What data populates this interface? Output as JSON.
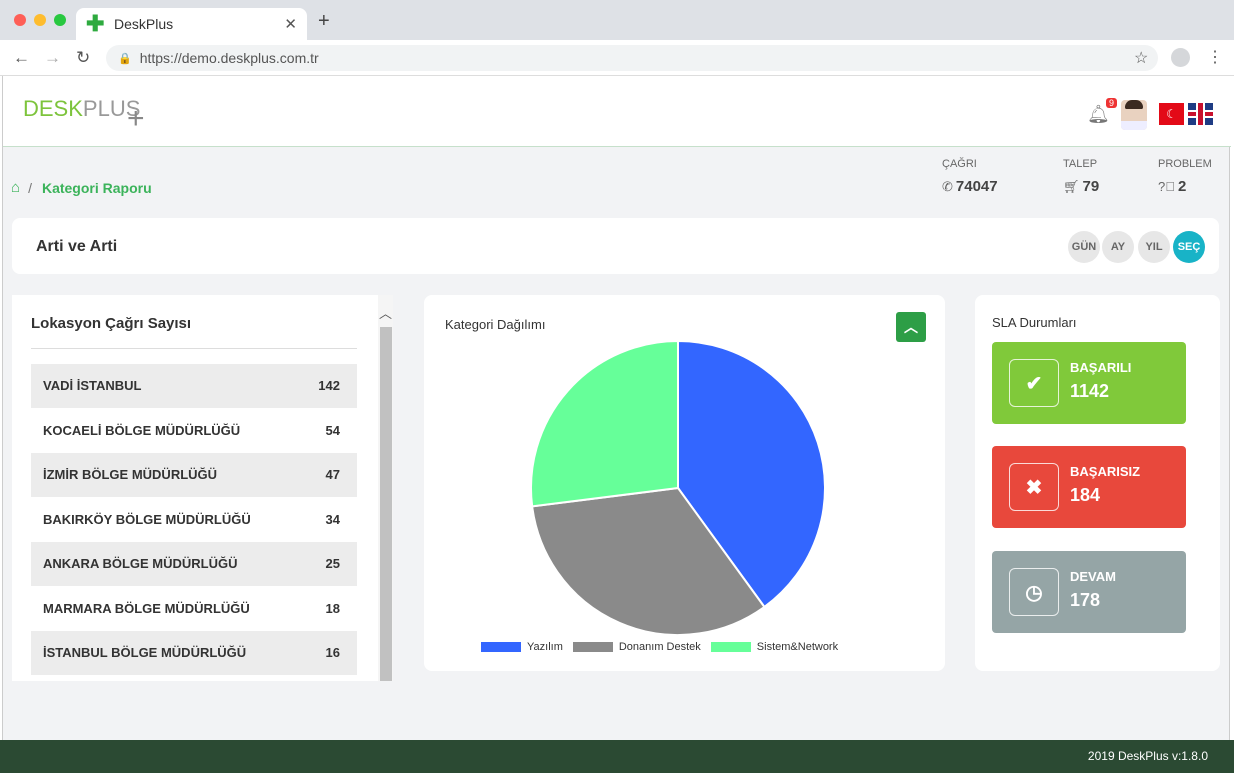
{
  "browser": {
    "tab_title": "DeskPlus",
    "url": "https://demo.deskplus.com.tr"
  },
  "header": {
    "logo_desk": "DESK",
    "logo_plus": "PLUS",
    "notification_count": "9",
    "flag_tr_icon": "flag-turkey-icon",
    "flag_uk_icon": "flag-uk-icon"
  },
  "breadcrumb": {
    "separator": "/",
    "current": "Kategori Raporu"
  },
  "stats": [
    {
      "label": "ÇAĞRI",
      "value": "74047",
      "icon": "phone-icon"
    },
    {
      "label": "TALEP",
      "value": "79",
      "icon": "cart-icon"
    },
    {
      "label": "PROBLEM",
      "value": "2",
      "icon": "question-icon"
    }
  ],
  "title_card": {
    "title": "Arti ve Arti",
    "periods": [
      "GÜN",
      "AY",
      "YIL",
      "SEÇ"
    ],
    "active_period": "SEÇ"
  },
  "location_card": {
    "title": "Lokasyon Çağrı Sayısı",
    "rows": [
      {
        "name": "VADİ İSTANBUL",
        "count": "142"
      },
      {
        "name": "KOCAELİ BÖLGE MÜDÜRLÜĞÜ",
        "count": "54"
      },
      {
        "name": "İZMİR BÖLGE MÜDÜRLÜĞÜ",
        "count": "47"
      },
      {
        "name": "BAKIRKÖY BÖLGE MÜDÜRLÜĞÜ",
        "count": "34"
      },
      {
        "name": "ANKARA BÖLGE MÜDÜRLÜĞÜ",
        "count": "25"
      },
      {
        "name": "MARMARA BÖLGE MÜDÜRLÜĞÜ",
        "count": "18"
      },
      {
        "name": "İSTANBUL BÖLGE MÜDÜRLÜĞÜ",
        "count": "16"
      }
    ]
  },
  "chart_card": {
    "title": "Kategori Dağılımı"
  },
  "chart_data": {
    "type": "pie",
    "categories": [
      "Yazılım",
      "Donanım Destek",
      "Sistem&Network"
    ],
    "values": [
      40,
      33,
      27
    ],
    "colors": [
      "#3366ff",
      "#8a8a8a",
      "#66ff99"
    ],
    "title": "Kategori Dağılımı",
    "legend": "bottom"
  },
  "sla_card": {
    "title": "SLA Durumları",
    "items": [
      {
        "label": "BAŞARILI",
        "value": "1142",
        "icon": "check-icon",
        "color": "#80c93a"
      },
      {
        "label": "BAŞARISIZ",
        "value": "184",
        "icon": "close-icon",
        "color": "#e8483c"
      },
      {
        "label": "DEVAM",
        "value": "178",
        "icon": "clock-icon",
        "color": "#95a5a6"
      }
    ]
  },
  "footer": {
    "text": "2019 DeskPlus v:1.8.0"
  }
}
